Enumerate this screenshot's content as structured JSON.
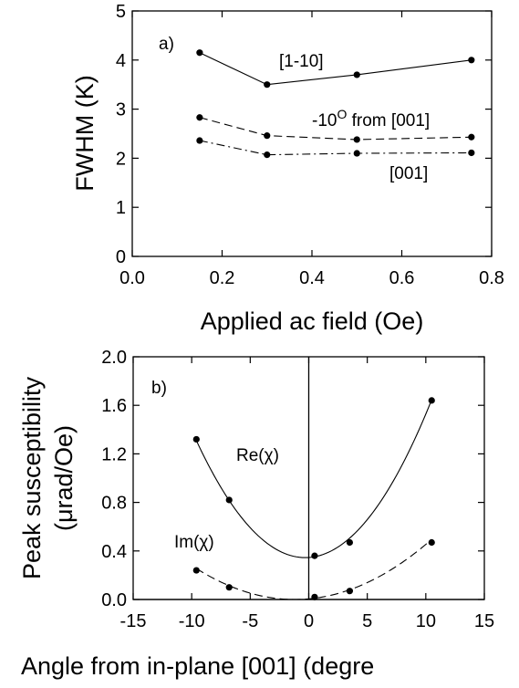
{
  "chart_data": [
    {
      "type": "line",
      "panel_label": "a)",
      "xlabel": "Applied ac field (Oe)",
      "ylabel": "FWHM (K)",
      "xlim": [
        0.0,
        0.8
      ],
      "ylim": [
        0,
        5
      ],
      "xticks": [
        "0.0",
        "0.2",
        "0.4",
        "0.6",
        "0.8"
      ],
      "yticks": [
        "0",
        "1",
        "2",
        "3",
        "4",
        "5"
      ],
      "grid": false,
      "series": [
        {
          "name": "[1-10]",
          "line_style": "solid",
          "x": [
            0.15,
            0.3,
            0.5,
            0.755
          ],
          "y": [
            4.15,
            3.5,
            3.7,
            4.0
          ]
        },
        {
          "name": "-10° from [001]",
          "name_main": "-10",
          "name_sup": "O",
          "name_rest": " from [001]",
          "line_style": "dashed",
          "x": [
            0.15,
            0.3,
            0.5,
            0.755
          ],
          "y": [
            2.83,
            2.46,
            2.38,
            2.43
          ]
        },
        {
          "name": "[001]",
          "line_style": "dash-dot",
          "x": [
            0.15,
            0.3,
            0.5,
            0.755
          ],
          "y": [
            2.36,
            2.07,
            2.1,
            2.11
          ]
        }
      ]
    },
    {
      "type": "scatter",
      "panel_label": "b)",
      "xlabel": "Angle from in-plane [001] (degre",
      "ylabel_line1": "Peak susceptibility",
      "ylabel_line2": "(μrad/Oe)",
      "xlim": [
        -15,
        15
      ],
      "ylim": [
        0.0,
        2.0
      ],
      "xticks": [
        "-15",
        "-10",
        "-5",
        "0",
        "5",
        "10",
        "15"
      ],
      "yticks": [
        "0.0",
        "0.4",
        "0.8",
        "1.2",
        "1.6",
        "2.0"
      ],
      "grid": false,
      "reference_lines": {
        "vertical_x": 0,
        "horizontal_y": 0
      },
      "series": [
        {
          "name": "Re(χ)",
          "line_style": "solid fit",
          "x": [
            -9.6,
            -6.8,
            0.5,
            3.5,
            10.5
          ],
          "y": [
            1.32,
            0.82,
            0.36,
            0.47,
            1.64
          ],
          "fit": {
            "vertex_x": -0.3,
            "vertex_y": 0.345,
            "coef": 0.01115
          }
        },
        {
          "name": "Im(χ)",
          "line_style": "dashed fit",
          "x": [
            -9.6,
            -6.8,
            0.5,
            3.5,
            10.5
          ],
          "y": [
            0.24,
            0.1,
            0.02,
            0.07,
            0.47
          ],
          "fit": {
            "vertex_x": -1.2,
            "vertex_y": 0.0,
            "coef": 0.00362
          }
        }
      ]
    }
  ]
}
